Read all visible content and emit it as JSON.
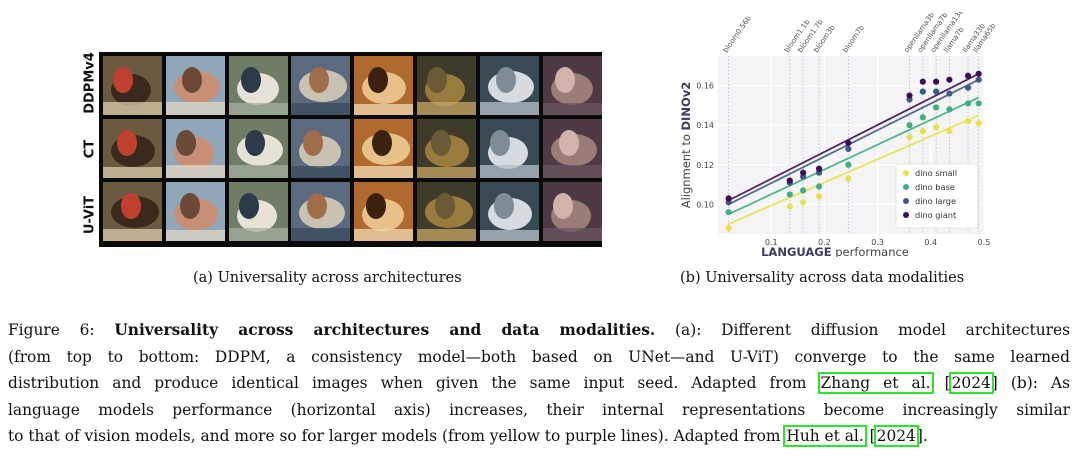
{
  "panel_a": {
    "row_labels": [
      "DDPMv4",
      "CT",
      "U-ViT"
    ],
    "caption": "(a) Universality across architectures",
    "image_subjects": [
      "horse",
      "horse",
      "truck",
      "truck",
      "dog",
      "deer",
      "airplane",
      "horse"
    ]
  },
  "panel_b": {
    "caption": "(b) Universality across data modalities"
  },
  "chart_data": {
    "type": "scatter",
    "xlabel_prefix": "LANGUAGE",
    "xlabel_suffix": " performance",
    "ylabel_prefix": "Alignment to ",
    "ylabel_emph": "DINOv2",
    "xlim": [
      0.0,
      0.5
    ],
    "ylim": [
      0.085,
      0.175
    ],
    "xticks": [
      0.1,
      0.2,
      0.3,
      0.4,
      0.5
    ],
    "xtick_labels": [
      "0.1",
      "0.2",
      "0.3",
      "0.4",
      "0.5"
    ],
    "yticks": [
      0.1,
      0.12,
      0.14,
      0.16
    ],
    "ytick_labels": [
      "0.10",
      "0.12",
      "0.14",
      "0.16"
    ],
    "grid": true,
    "legend_position": "bottom-right",
    "top_labels": [
      {
        "x": 0.02,
        "text": "bloom0.56b"
      },
      {
        "x": 0.135,
        "text": "bloom1.1b"
      },
      {
        "x": 0.16,
        "text": "bloom1.7b"
      },
      {
        "x": 0.19,
        "text": "bloom3b"
      },
      {
        "x": 0.245,
        "text": "bloom7b"
      },
      {
        "x": 0.36,
        "text": "openllama3b"
      },
      {
        "x": 0.385,
        "text": "openllama7b"
      },
      {
        "x": 0.41,
        "text": "openllama13b"
      },
      {
        "x": 0.435,
        "text": "llama7b"
      },
      {
        "x": 0.47,
        "text": "llama33b"
      },
      {
        "x": 0.49,
        "text": "llama65b"
      }
    ],
    "x": [
      0.02,
      0.135,
      0.16,
      0.19,
      0.245,
      0.36,
      0.385,
      0.41,
      0.435,
      0.47,
      0.49
    ],
    "series": [
      {
        "name": "dino small",
        "color": "#e7e24b",
        "values": [
          0.088,
          0.099,
          0.101,
          0.104,
          0.113,
          0.134,
          0.137,
          0.139,
          0.137,
          0.142,
          0.141
        ],
        "fit": [
          0.09,
          0.145
        ]
      },
      {
        "name": "dino base",
        "color": "#3fae82",
        "values": [
          0.096,
          0.105,
          0.107,
          0.109,
          0.12,
          0.14,
          0.144,
          0.149,
          0.148,
          0.151,
          0.151
        ],
        "fit": [
          0.095,
          0.154
        ]
      },
      {
        "name": "dino large",
        "color": "#3f5a8a",
        "values": [
          0.101,
          0.111,
          0.114,
          0.116,
          0.128,
          0.153,
          0.157,
          0.157,
          0.156,
          0.159,
          0.163
        ],
        "fit": [
          0.1,
          0.163
        ]
      },
      {
        "name": "dino giant",
        "color": "#3d0e57",
        "values": [
          0.103,
          0.112,
          0.116,
          0.118,
          0.131,
          0.155,
          0.162,
          0.162,
          0.163,
          0.165,
          0.166
        ],
        "fit": [
          0.102,
          0.166
        ]
      }
    ]
  },
  "figure_caption": {
    "lines": [
      [
        {
          "t": "Figure 6: "
        },
        {
          "t": "Universality across architectures and data modalities.",
          "b": true
        },
        {
          "t": " (a): Different diffusion model architectures"
        }
      ],
      [
        {
          "t": "(from top to bottom: DDPM, a consistency model—both based on UNet—and U-ViT) converge to the same learned"
        }
      ],
      [
        {
          "t": "distribution and produce identical images when given the same input seed. Adapted from "
        },
        {
          "t": "Zhang et al.",
          "c": true
        },
        {
          "t": " ["
        },
        {
          "t": "2024",
          "c": true
        },
        {
          "t": "] (b): As"
        }
      ],
      [
        {
          "t": "language models performance (horizontal axis) increases, their internal representations become increasingly similar"
        }
      ],
      [
        {
          "t": "to that of vision models, and more so for larger models (from yellow to purple lines). Adapted from "
        },
        {
          "t": "Huh et al.",
          "c": true
        },
        {
          "t": " ["
        },
        {
          "t": "2024",
          "c": true
        },
        {
          "t": "]."
        }
      ]
    ]
  }
}
